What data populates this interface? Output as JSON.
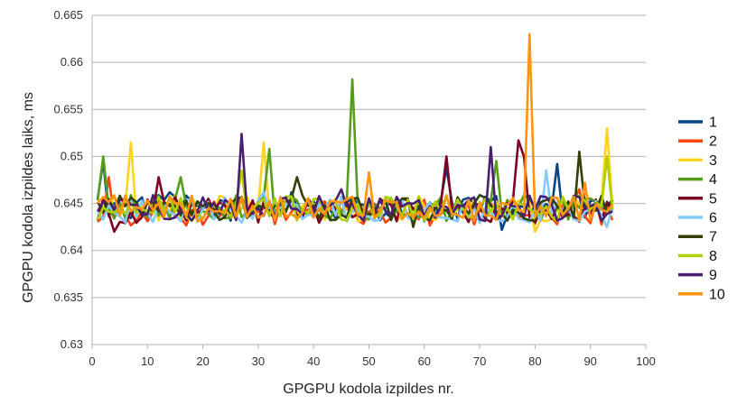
{
  "chart_data": {
    "type": "line",
    "title": "",
    "xlabel": "GPGPU kodola izpildes nr.",
    "ylabel": "GPGPU kodola izpildes laiks, ms",
    "xlim": [
      0,
      100
    ],
    "ylim": [
      0.63,
      0.665
    ],
    "xticks": [
      0,
      10,
      20,
      30,
      40,
      50,
      60,
      70,
      80,
      90,
      100
    ],
    "yticks": [
      0.63,
      0.635,
      0.64,
      0.645,
      0.65,
      0.655,
      0.66,
      0.665
    ],
    "xtick_labels": [
      "0",
      "10",
      "20",
      "30",
      "40",
      "50",
      "60",
      "70",
      "80",
      "90",
      "100"
    ],
    "ytick_labels": [
      "0.63",
      "0.635",
      "0.64",
      "0.645",
      "0.65",
      "0.655",
      "0.66",
      "0.665"
    ],
    "grid": "horizontal",
    "legend_position": "right",
    "series": [
      {
        "name": "1",
        "color": "#004586",
        "base": 0.6445,
        "spikes": [
          [
            2,
            0.6495
          ],
          [
            14,
            0.6462
          ],
          [
            36,
            0.6462
          ],
          [
            64,
            0.6488
          ],
          [
            74,
            0.6422
          ],
          [
            84,
            0.6492
          ]
        ]
      },
      {
        "name": "2",
        "color": "#ff420e",
        "base": 0.644,
        "spikes": [
          [
            3,
            0.6478
          ],
          [
            22,
            0.6452
          ],
          [
            50,
            0.644
          ],
          [
            88,
            0.6465
          ]
        ]
      },
      {
        "name": "3",
        "color": "#ffd320",
        "base": 0.6445,
        "spikes": [
          [
            7,
            0.6515
          ],
          [
            31,
            0.6515
          ],
          [
            49,
            0.6432
          ],
          [
            80,
            0.642
          ],
          [
            93,
            0.653
          ]
        ]
      },
      {
        "name": "4",
        "color": "#579d1c",
        "base": 0.6445,
        "spikes": [
          [
            2,
            0.65
          ],
          [
            16,
            0.6478
          ],
          [
            32,
            0.6508
          ],
          [
            47,
            0.6582
          ],
          [
            73,
            0.6495
          ]
        ]
      },
      {
        "name": "5",
        "color": "#7e0021",
        "base": 0.6443,
        "spikes": [
          [
            4,
            0.642
          ],
          [
            12,
            0.6478
          ],
          [
            64,
            0.65
          ],
          [
            77,
            0.6517
          ],
          [
            78,
            0.65
          ]
        ]
      },
      {
        "name": "6",
        "color": "#83caff",
        "base": 0.6443,
        "spikes": [
          [
            31,
            0.6462
          ],
          [
            82,
            0.6485
          ],
          [
            93,
            0.6425
          ]
        ]
      },
      {
        "name": "7",
        "color": "#314004",
        "base": 0.6445,
        "spikes": [
          [
            37,
            0.6478
          ],
          [
            58,
            0.6425
          ],
          [
            88,
            0.6505
          ]
        ]
      },
      {
        "name": "8",
        "color": "#aecf00",
        "base": 0.6445,
        "spikes": [
          [
            27,
            0.6485
          ],
          [
            46,
            0.6432
          ],
          [
            75,
            0.6445
          ],
          [
            93,
            0.65
          ]
        ]
      },
      {
        "name": "9",
        "color": "#4b1f6f",
        "base": 0.6445,
        "spikes": [
          [
            27,
            0.6524
          ],
          [
            45,
            0.6465
          ],
          [
            72,
            0.651
          ]
        ]
      },
      {
        "name": "10",
        "color": "#ff950e",
        "base": 0.6445,
        "spikes": [
          [
            50,
            0.6483
          ],
          [
            79,
            0.663
          ],
          [
            89,
            0.6472
          ]
        ]
      }
    ],
    "x_count": 94
  }
}
